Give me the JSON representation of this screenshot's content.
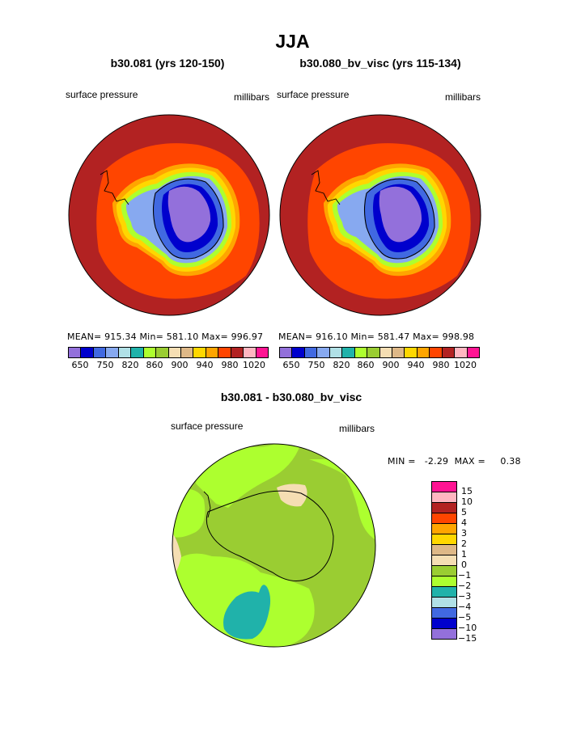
{
  "title": "JJA",
  "colors": {
    "pressure_scale": [
      "#9370db",
      "#0000cd",
      "#4169e1",
      "#87a9f0",
      "#b0e0e6",
      "#20b2aa",
      "#adff2f",
      "#9acd32",
      "#f5deb3",
      "#deb887",
      "#ffd700",
      "#ffa500",
      "#ff4500",
      "#b22222",
      "#ffb6c1",
      "#ff1493"
    ],
    "diff_scale": [
      "#ff1493",
      "#ffb6c1",
      "#b22222",
      "#ff4500",
      "#ffa500",
      "#ffd700",
      "#deb887",
      "#f5deb3",
      "#9acd32",
      "#adff2f",
      "#20b2aa",
      "#b0e0e6",
      "#4169e1",
      "#0000cd",
      "#9370db"
    ]
  },
  "panels": [
    {
      "title": "b30.081 (yrs 120-150)",
      "field_label": "surface pressure",
      "units": "millibars",
      "stats": "MEAN= 915.34  Min= 581.10  Max= 996.97",
      "ticks": [
        "650",
        "750",
        "820",
        "860",
        "900",
        "940",
        "980",
        "1020"
      ]
    },
    {
      "title": "b30.080_bv_visc (yrs 115-134)",
      "field_label": "surface pressure",
      "units": "millibars",
      "stats": "MEAN= 916.10  Min= 581.47  Max= 998.98",
      "ticks": [
        "650",
        "750",
        "820",
        "860",
        "900",
        "940",
        "980",
        "1020"
      ]
    }
  ],
  "diff": {
    "title": "b30.081 - b30.080_bv_visc",
    "field_label": "surface pressure",
    "units": "millibars",
    "minmax": "MIN =   -2.29  MAX =     0.38",
    "ticks": [
      "15",
      "10",
      "5",
      "4",
      "3",
      "2",
      "1",
      "0",
      "−1",
      "−2",
      "−3",
      "−4",
      "−5",
      "−10",
      "−15"
    ]
  }
}
